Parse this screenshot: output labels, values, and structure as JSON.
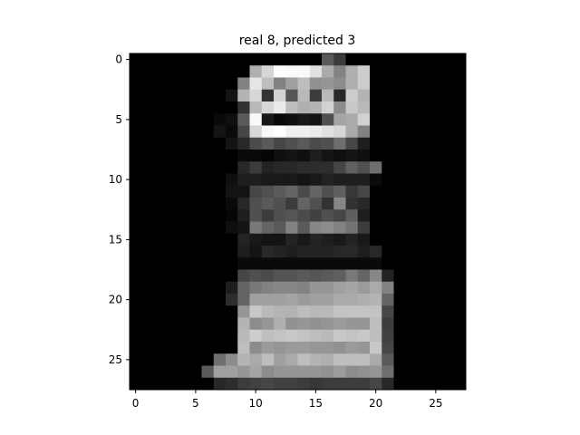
{
  "chart_data": {
    "type": "heatmap",
    "title": "real 8, predicted 3",
    "xlabel": "",
    "ylabel": "",
    "colormap": "gray",
    "value_range": [
      0,
      255
    ],
    "xlim": [
      -0.5,
      27.5
    ],
    "ylim": [
      27.5,
      -0.5
    ],
    "x_ticks": [
      0,
      5,
      10,
      15,
      20,
      25
    ],
    "y_ticks": [
      0,
      5,
      10,
      15,
      20,
      25
    ],
    "x_tick_labels": [
      "0",
      "5",
      "10",
      "15",
      "20",
      "25"
    ],
    "y_tick_labels": [
      "0",
      "5",
      "10",
      "15",
      "20",
      "25"
    ],
    "grid": false,
    "matrix": [
      [
        0,
        0,
        0,
        0,
        0,
        0,
        0,
        0,
        0,
        0,
        0,
        0,
        0,
        0,
        0,
        0,
        90,
        60,
        0,
        0,
        0,
        0,
        0,
        0,
        0,
        0,
        0,
        0
      ],
      [
        0,
        0,
        0,
        0,
        0,
        0,
        0,
        0,
        0,
        0,
        175,
        215,
        255,
        250,
        250,
        225,
        170,
        130,
        175,
        205,
        0,
        0,
        0,
        0,
        0,
        0,
        0,
        0
      ],
      [
        0,
        0,
        0,
        0,
        0,
        0,
        0,
        0,
        0,
        130,
        230,
        190,
        130,
        160,
        190,
        145,
        150,
        140,
        175,
        205,
        0,
        0,
        0,
        0,
        0,
        0,
        0,
        0
      ],
      [
        0,
        0,
        0,
        0,
        0,
        0,
        0,
        0,
        20,
        180,
        215,
        50,
        210,
        85,
        185,
        60,
        185,
        40,
        205,
        180,
        0,
        0,
        0,
        0,
        0,
        0,
        0,
        0
      ],
      [
        0,
        0,
        0,
        0,
        0,
        0,
        0,
        0,
        0,
        50,
        185,
        215,
        235,
        190,
        175,
        180,
        210,
        140,
        200,
        185,
        0,
        0,
        0,
        0,
        0,
        0,
        0,
        0
      ],
      [
        0,
        0,
        0,
        0,
        0,
        0,
        0,
        10,
        15,
        90,
        250,
        25,
        10,
        15,
        25,
        20,
        80,
        165,
        170,
        210,
        0,
        0,
        0,
        0,
        0,
        0,
        0,
        0
      ],
      [
        0,
        0,
        0,
        0,
        0,
        0,
        0,
        20,
        10,
        70,
        215,
        250,
        255,
        240,
        240,
        235,
        225,
        215,
        170,
        130,
        0,
        0,
        0,
        0,
        0,
        0,
        0,
        0
      ],
      [
        0,
        0,
        0,
        0,
        0,
        0,
        0,
        0,
        20,
        40,
        75,
        90,
        70,
        80,
        90,
        75,
        80,
        110,
        70,
        30,
        0,
        0,
        0,
        0,
        0,
        0,
        0,
        0
      ],
      [
        0,
        0,
        0,
        0,
        0,
        0,
        0,
        0,
        0,
        10,
        10,
        5,
        15,
        20,
        15,
        30,
        20,
        15,
        20,
        15,
        0,
        0,
        0,
        0,
        0,
        0,
        0,
        0
      ],
      [
        0,
        0,
        0,
        0,
        0,
        0,
        0,
        0,
        0,
        40,
        60,
        35,
        40,
        40,
        45,
        45,
        45,
        70,
        95,
        80,
        110,
        0,
        0,
        0,
        0,
        0,
        0,
        0
      ],
      [
        0,
        0,
        0,
        0,
        0,
        0,
        0,
        0,
        15,
        30,
        30,
        25,
        25,
        25,
        20,
        25,
        35,
        30,
        30,
        30,
        10,
        0,
        0,
        0,
        0,
        0,
        0,
        0
      ],
      [
        0,
        0,
        0,
        0,
        0,
        0,
        0,
        0,
        20,
        20,
        70,
        80,
        90,
        100,
        75,
        100,
        80,
        95,
        55,
        70,
        0,
        0,
        0,
        0,
        0,
        0,
        0,
        0
      ],
      [
        0,
        0,
        0,
        0,
        0,
        0,
        0,
        0,
        10,
        40,
        80,
        90,
        80,
        60,
        100,
        80,
        50,
        135,
        50,
        40,
        0,
        0,
        0,
        0,
        0,
        0,
        0,
        0
      ],
      [
        0,
        0,
        0,
        0,
        0,
        0,
        0,
        0,
        5,
        30,
        80,
        60,
        80,
        85,
        75,
        65,
        80,
        70,
        95,
        30,
        0,
        0,
        0,
        0,
        0,
        0,
        0,
        0
      ],
      [
        0,
        0,
        0,
        0,
        0,
        0,
        0,
        0,
        15,
        20,
        120,
        100,
        90,
        130,
        90,
        135,
        140,
        130,
        115,
        60,
        0,
        0,
        0,
        0,
        0,
        0,
        0,
        0
      ],
      [
        0,
        0,
        0,
        0,
        0,
        0,
        0,
        0,
        0,
        35,
        25,
        20,
        20,
        35,
        25,
        35,
        30,
        25,
        35,
        25,
        0,
        0,
        0,
        0,
        0,
        0,
        0,
        0
      ],
      [
        0,
        0,
        0,
        0,
        0,
        0,
        0,
        0,
        0,
        30,
        20,
        40,
        35,
        30,
        35,
        35,
        35,
        40,
        40,
        30,
        40,
        0,
        0,
        0,
        0,
        0,
        0,
        0
      ],
      [
        0,
        0,
        0,
        0,
        0,
        0,
        0,
        0,
        0,
        10,
        10,
        10,
        10,
        10,
        10,
        10,
        10,
        10,
        10,
        10,
        10,
        0,
        0,
        0,
        0,
        0,
        0,
        0
      ],
      [
        0,
        0,
        0,
        0,
        0,
        0,
        0,
        0,
        0,
        70,
        80,
        75,
        85,
        85,
        90,
        85,
        90,
        95,
        120,
        100,
        135,
        35,
        0,
        0,
        0,
        0,
        0,
        0
      ],
      [
        0,
        0,
        0,
        0,
        0,
        0,
        0,
        0,
        30,
        100,
        120,
        130,
        135,
        135,
        130,
        150,
        150,
        160,
        165,
        155,
        170,
        130,
        0,
        0,
        0,
        0,
        0,
        0
      ],
      [
        0,
        0,
        0,
        0,
        0,
        0,
        0,
        0,
        45,
        100,
        160,
        160,
        160,
        165,
        155,
        160,
        160,
        170,
        170,
        175,
        180,
        100,
        0,
        0,
        0,
        0,
        0,
        0
      ],
      [
        0,
        0,
        0,
        0,
        0,
        0,
        0,
        0,
        0,
        150,
        200,
        185,
        180,
        180,
        190,
        185,
        185,
        195,
        195,
        195,
        195,
        70,
        0,
        0,
        0,
        0,
        0,
        0
      ],
      [
        0,
        0,
        0,
        0,
        0,
        0,
        0,
        0,
        0,
        180,
        140,
        150,
        175,
        145,
        150,
        145,
        150,
        155,
        150,
        150,
        190,
        60,
        0,
        0,
        0,
        0,
        0,
        0
      ],
      [
        0,
        0,
        0,
        0,
        0,
        0,
        0,
        0,
        0,
        185,
        205,
        190,
        195,
        200,
        195,
        190,
        185,
        200,
        195,
        200,
        190,
        65,
        0,
        0,
        0,
        0,
        0,
        0
      ],
      [
        0,
        0,
        0,
        0,
        0,
        0,
        0,
        0,
        0,
        190,
        140,
        155,
        150,
        155,
        155,
        150,
        150,
        145,
        155,
        150,
        200,
        70,
        0,
        0,
        0,
        0,
        0,
        0
      ],
      [
        0,
        0,
        0,
        0,
        0,
        0,
        0,
        110,
        140,
        180,
        170,
        190,
        160,
        170,
        190,
        180,
        175,
        190,
        190,
        190,
        170,
        90,
        0,
        0,
        0,
        0,
        0,
        0
      ],
      [
        0,
        0,
        0,
        0,
        0,
        0,
        90,
        160,
        160,
        150,
        165,
        140,
        150,
        150,
        150,
        150,
        145,
        155,
        140,
        145,
        150,
        110,
        0,
        0,
        0,
        0,
        0,
        0
      ],
      [
        0,
        0,
        0,
        0,
        0,
        0,
        0,
        40,
        45,
        60,
        65,
        70,
        65,
        65,
        60,
        55,
        60,
        60,
        60,
        60,
        70,
        40,
        0,
        0,
        0,
        0,
        0,
        0
      ]
    ]
  }
}
